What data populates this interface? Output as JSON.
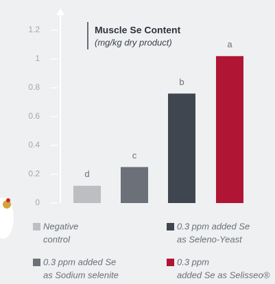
{
  "chart_data": {
    "type": "bar",
    "title": "Muscle Se Content",
    "subtitle": "(mg/kg dry product)",
    "categories": [
      [
        "Negative",
        "control"
      ],
      [
        "0.3 ppm added Se",
        "as Sodium selenite"
      ],
      [
        "0.3 ppm added Se",
        "as Seleno-Yeast"
      ],
      [
        "0.3 ppm",
        "added Se as Selisseo®"
      ]
    ],
    "values": [
      0.12,
      0.25,
      0.76,
      1.02
    ],
    "letters": [
      "d",
      "c",
      "b",
      "a"
    ],
    "colors": [
      "#bdbec2",
      "#6c7078",
      "#404650",
      "#b01533"
    ],
    "ylim": [
      0,
      1.2
    ],
    "yticks": [
      0,
      0.2,
      0.4,
      0.6,
      0.8,
      1,
      1.2
    ]
  }
}
